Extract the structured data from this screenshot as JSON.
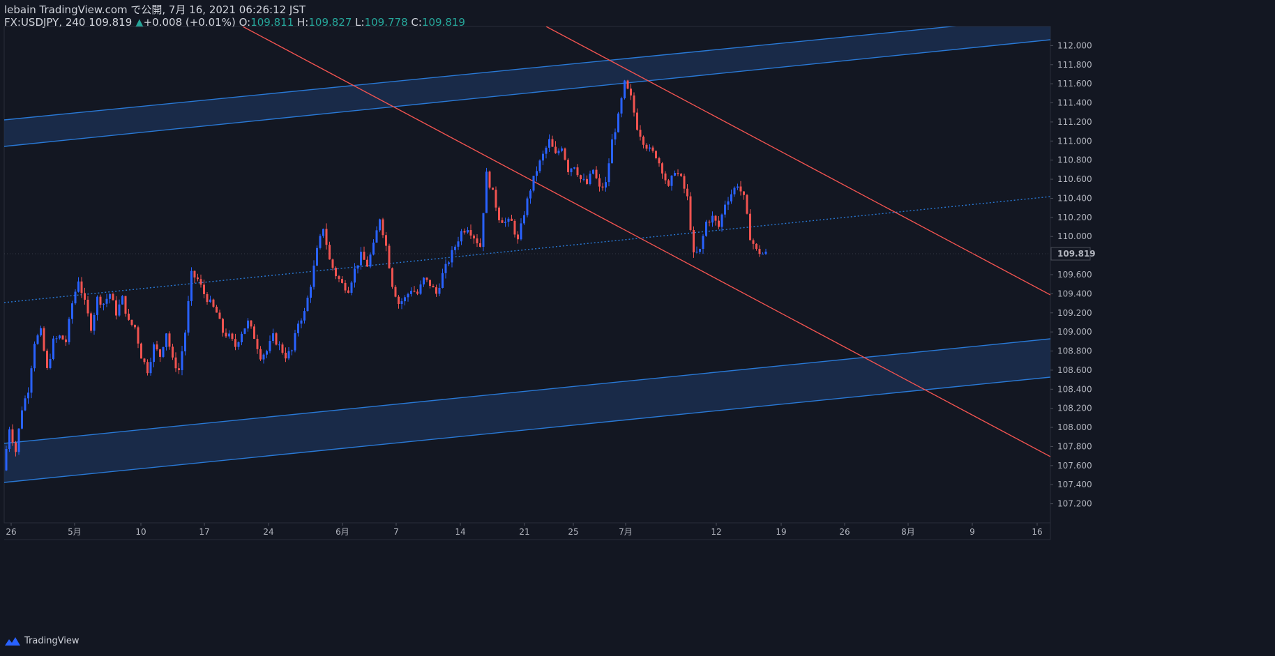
{
  "header": {
    "publish_line": "lebain TradingView.com で公開, 7月 16, 2021 06:26:12 JST",
    "symbol_line": "FX:USDJPY, 240 109.819",
    "change": "+0.008 (+0.01%)",
    "open_label": "O:",
    "open": "109.811",
    "high_label": "H:",
    "high": "109.827",
    "low_label": "L:",
    "low": "109.778",
    "close_label": "C:",
    "close": "109.819"
  },
  "footer": {
    "brand": "TradingView"
  },
  "colors": {
    "background": "#131722",
    "bull": "#2962ff",
    "bear": "#f05350",
    "channel_line": "#2979d6",
    "channel_fill": "#1c3156",
    "down_line": "#f05350",
    "price_tag_bg": "#131722"
  },
  "chart_data": {
    "type": "candlestick",
    "symbol": "FX:USDJPY",
    "interval": "240",
    "last_price": "109.819",
    "y_ticks": [
      "112.000",
      "111.800",
      "111.600",
      "111.400",
      "111.200",
      "111.000",
      "110.800",
      "110.600",
      "110.400",
      "110.200",
      "110.000",
      "109.600",
      "109.400",
      "109.200",
      "109.000",
      "108.800",
      "108.600",
      "108.400",
      "108.200",
      "108.000",
      "107.800",
      "107.600",
      "107.400",
      "107.200"
    ],
    "x_ticks": [
      "26",
      "5月",
      "10",
      "17",
      "24",
      "6月",
      "7",
      "14",
      "21",
      "25",
      "7月",
      "12",
      "19",
      "26",
      "8月",
      "9",
      "16"
    ],
    "ylim": [
      107.0,
      112.2
    ],
    "path": [
      [
        0,
        107.55
      ],
      [
        2,
        108.0
      ],
      [
        4,
        107.75
      ],
      [
        6,
        108.2
      ],
      [
        8,
        108.4
      ],
      [
        10,
        108.9
      ],
      [
        12,
        109.0
      ],
      [
        14,
        108.6
      ],
      [
        16,
        108.9
      ],
      [
        18,
        108.95
      ],
      [
        20,
        108.9
      ],
      [
        22,
        109.3
      ],
      [
        24,
        109.55
      ],
      [
        26,
        109.3
      ],
      [
        28,
        109.05
      ],
      [
        30,
        109.35
      ],
      [
        32,
        109.3
      ],
      [
        34,
        109.4
      ],
      [
        36,
        109.2
      ],
      [
        38,
        109.35
      ],
      [
        40,
        109.1
      ],
      [
        42,
        109.05
      ],
      [
        44,
        108.75
      ],
      [
        46,
        108.6
      ],
      [
        48,
        108.85
      ],
      [
        50,
        108.75
      ],
      [
        52,
        109.0
      ],
      [
        54,
        108.7
      ],
      [
        56,
        108.6
      ],
      [
        58,
        109.0
      ],
      [
        60,
        109.6
      ],
      [
        62,
        109.55
      ],
      [
        64,
        109.4
      ],
      [
        66,
        109.3
      ],
      [
        68,
        109.2
      ],
      [
        70,
        109.0
      ],
      [
        72,
        108.95
      ],
      [
        74,
        108.85
      ],
      [
        76,
        109.0
      ],
      [
        78,
        109.1
      ],
      [
        80,
        108.95
      ],
      [
        82,
        108.75
      ],
      [
        84,
        108.8
      ],
      [
        86,
        108.95
      ],
      [
        88,
        108.85
      ],
      [
        90,
        108.75
      ],
      [
        92,
        108.8
      ],
      [
        94,
        109.1
      ],
      [
        96,
        109.2
      ],
      [
        98,
        109.5
      ],
      [
        100,
        109.85
      ],
      [
        102,
        110.1
      ],
      [
        104,
        109.75
      ],
      [
        106,
        109.6
      ],
      [
        108,
        109.5
      ],
      [
        110,
        109.45
      ],
      [
        112,
        109.65
      ],
      [
        114,
        109.8
      ],
      [
        116,
        109.7
      ],
      [
        118,
        109.9
      ],
      [
        120,
        110.2
      ],
      [
        122,
        109.9
      ],
      [
        124,
        109.5
      ],
      [
        126,
        109.3
      ],
      [
        128,
        109.35
      ],
      [
        130,
        109.45
      ],
      [
        132,
        109.4
      ],
      [
        134,
        109.55
      ],
      [
        136,
        109.5
      ],
      [
        138,
        109.4
      ],
      [
        140,
        109.6
      ],
      [
        142,
        109.75
      ],
      [
        144,
        109.9
      ],
      [
        146,
        110.05
      ],
      [
        148,
        110.1
      ],
      [
        150,
        110.0
      ],
      [
        152,
        109.9
      ],
      [
        154,
        110.65
      ],
      [
        156,
        110.45
      ],
      [
        158,
        110.2
      ],
      [
        160,
        110.15
      ],
      [
        162,
        110.15
      ],
      [
        164,
        109.95
      ],
      [
        166,
        110.25
      ],
      [
        168,
        110.5
      ],
      [
        170,
        110.7
      ],
      [
        172,
        110.85
      ],
      [
        174,
        111.0
      ],
      [
        176,
        110.85
      ],
      [
        178,
        110.95
      ],
      [
        180,
        110.7
      ],
      [
        182,
        110.75
      ],
      [
        184,
        110.6
      ],
      [
        186,
        110.55
      ],
      [
        188,
        110.7
      ],
      [
        190,
        110.5
      ],
      [
        192,
        110.55
      ],
      [
        194,
        111.0
      ],
      [
        196,
        111.25
      ],
      [
        198,
        111.6
      ],
      [
        200,
        111.45
      ],
      [
        202,
        111.15
      ],
      [
        204,
        111.0
      ],
      [
        206,
        110.9
      ],
      [
        208,
        110.85
      ],
      [
        210,
        110.7
      ],
      [
        212,
        110.5
      ],
      [
        214,
        110.7
      ],
      [
        216,
        110.6
      ],
      [
        218,
        110.4
      ],
      [
        220,
        109.8
      ],
      [
        222,
        109.85
      ],
      [
        224,
        110.15
      ],
      [
        226,
        110.2
      ],
      [
        228,
        110.1
      ],
      [
        230,
        110.35
      ],
      [
        232,
        110.45
      ],
      [
        234,
        110.55
      ],
      [
        236,
        110.4
      ],
      [
        238,
        110.0
      ],
      [
        240,
        109.85
      ],
      [
        242,
        109.82
      ]
    ]
  }
}
